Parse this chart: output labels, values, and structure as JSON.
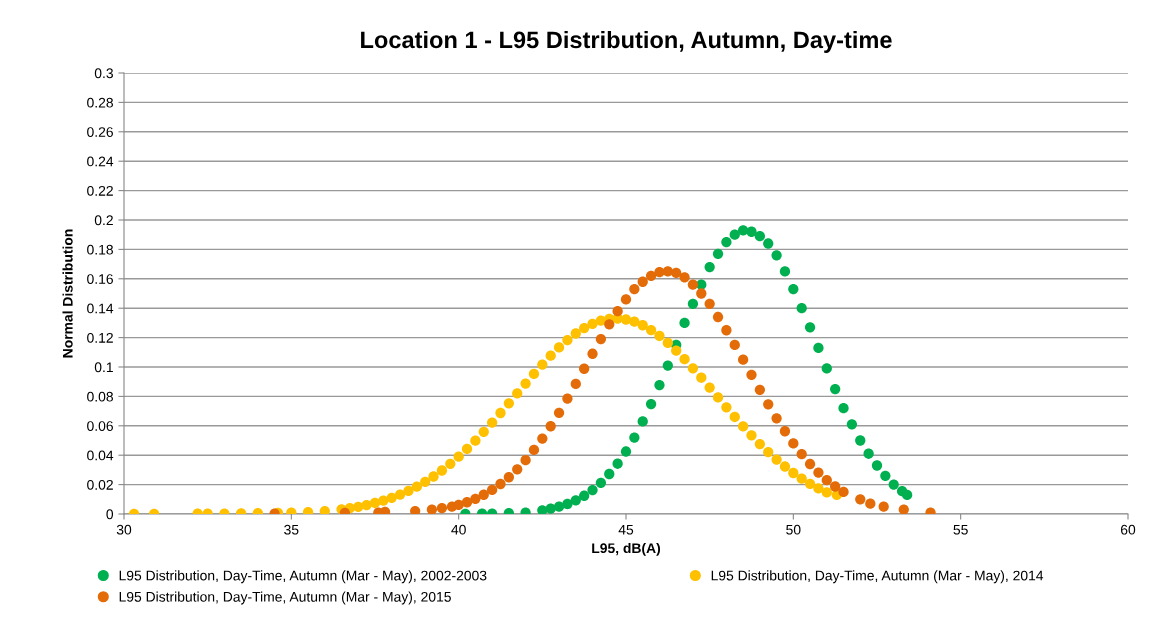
{
  "chart_data": {
    "type": "scatter",
    "title": "Location 1 - L95 Distribution, Autumn, Day-time",
    "xlabel": "L95, dB(A)",
    "ylabel": "Normal Distribution",
    "xlim": [
      30,
      60
    ],
    "xticks": [
      30,
      35,
      40,
      45,
      50,
      55,
      60
    ],
    "ylim": [
      0,
      0.3
    ],
    "yticks": [
      0,
      0.02,
      0.04,
      0.06,
      0.08,
      0.1,
      0.12,
      0.14,
      0.16,
      0.18,
      0.2,
      0.22,
      0.24,
      0.26,
      0.28,
      0.3
    ],
    "grid": "y",
    "legend": "bottom",
    "marker": "circle",
    "series": [
      {
        "name": "L95 Distribution, Day-Time, Autumn (Mar - May), 2002-2003",
        "color": "#00b050",
        "x": [
          40.2,
          40.7,
          41,
          41.5,
          42,
          42.5,
          42.75,
          43,
          43.25,
          43.5,
          43.75,
          44,
          44.25,
          44.5,
          44.75,
          45,
          45.25,
          45.5,
          45.75,
          46,
          46.25,
          46.5,
          46.75,
          47,
          47.25,
          47.5,
          47.75,
          48,
          48.25,
          48.5,
          48.75,
          49,
          49.25,
          49.5,
          49.75,
          50,
          50.25,
          50.5,
          50.75,
          51,
          51.25,
          51.5,
          51.75,
          52,
          52.25,
          52.5,
          52.75,
          53,
          53.25,
          53.4
        ],
        "values": [
          0.0001,
          0.0002,
          0.0002,
          0.0005,
          0.001,
          0.0025,
          0.0036,
          0.005,
          0.0068,
          0.0093,
          0.0124,
          0.0163,
          0.0212,
          0.0272,
          0.0342,
          0.0425,
          0.052,
          0.063,
          0.0748,
          0.0877,
          0.101,
          0.115,
          0.13,
          0.143,
          0.156,
          0.168,
          0.177,
          0.185,
          0.19,
          0.193,
          0.192,
          0.189,
          0.184,
          0.176,
          0.165,
          0.153,
          0.14,
          0.127,
          0.113,
          0.099,
          0.085,
          0.072,
          0.061,
          0.05,
          0.041,
          0.033,
          0.026,
          0.02,
          0.0155,
          0.013
        ]
      },
      {
        "name": "L95 Distribution, Day-Time, Autumn (Mar - May), 2014",
        "color": "#ffc000",
        "x": [
          30.3,
          30.9,
          32.2,
          32.5,
          33,
          33.5,
          34,
          34.6,
          35,
          35.5,
          36,
          36.5,
          36.75,
          37,
          37.25,
          37.5,
          37.75,
          38,
          38.25,
          38.5,
          38.75,
          39,
          39.25,
          39.5,
          39.75,
          40,
          40.25,
          40.5,
          40.75,
          41,
          41.25,
          41.5,
          41.75,
          42,
          42.25,
          42.5,
          42.75,
          43,
          43.25,
          43.5,
          43.75,
          44,
          44.25,
          44.5,
          44.75,
          45,
          45.25,
          45.5,
          45.75,
          46,
          46.25,
          46.5,
          46.75,
          47,
          47.25,
          47.5,
          47.75,
          48,
          48.25,
          48.5,
          48.75,
          49,
          49.25,
          49.5,
          49.75,
          50,
          50.25,
          50.5,
          50.75,
          51,
          51.3
        ],
        "values": [
          0.0001,
          0.0001,
          0.0002,
          0.0003,
          0.0003,
          0.0004,
          0.0006,
          0.0007,
          0.001,
          0.0013,
          0.002,
          0.0032,
          0.004,
          0.0049,
          0.0061,
          0.0075,
          0.0091,
          0.011,
          0.0132,
          0.0157,
          0.0186,
          0.0219,
          0.0255,
          0.0296,
          0.0341,
          0.039,
          0.0443,
          0.0499,
          0.0559,
          0.0622,
          0.0687,
          0.0753,
          0.082,
          0.0887,
          0.0953,
          0.1016,
          0.1077,
          0.1133,
          0.1183,
          0.1228,
          0.1265,
          0.1294,
          0.1315,
          0.1327,
          0.133,
          0.1323,
          0.1308,
          0.1284,
          0.1251,
          0.1211,
          0.1164,
          0.1111,
          0.1053,
          0.0991,
          0.0927,
          0.086,
          0.0793,
          0.0726,
          0.066,
          0.0596,
          0.0535,
          0.0476,
          0.0421,
          0.037,
          0.0323,
          0.0279,
          0.024,
          0.0205,
          0.0174,
          0.0147,
          0.013
        ]
      },
      {
        "name": "L95 Distribution, Day-Time, Autumn (Mar - May), 2015",
        "color": "#e36c09",
        "x": [
          34.5,
          36.6,
          37.6,
          37.8,
          38.7,
          39.2,
          39.5,
          39.8,
          40,
          40.25,
          40.5,
          40.75,
          41,
          41.25,
          41.5,
          41.75,
          42,
          42.25,
          42.5,
          42.75,
          43,
          43.25,
          43.5,
          43.75,
          44,
          44.25,
          44.5,
          44.75,
          45,
          45.25,
          45.5,
          45.75,
          46,
          46.25,
          46.5,
          46.75,
          47,
          47.25,
          47.5,
          47.75,
          48,
          48.25,
          48.5,
          48.75,
          49,
          49.25,
          49.5,
          49.75,
          50,
          50.25,
          50.5,
          50.75,
          51,
          51.25,
          51.5,
          52,
          52.3,
          52.7,
          53.3,
          54.1
        ],
        "values": [
          0.0003,
          0.0008,
          0.001,
          0.0015,
          0.002,
          0.003,
          0.004,
          0.005,
          0.0062,
          0.008,
          0.0103,
          0.0131,
          0.0164,
          0.0204,
          0.025,
          0.0304,
          0.0366,
          0.0436,
          0.0513,
          0.0597,
          0.0688,
          0.0785,
          0.0885,
          0.0988,
          0.109,
          0.119,
          0.129,
          0.138,
          0.146,
          0.153,
          0.158,
          0.162,
          0.1645,
          0.165,
          0.164,
          0.161,
          0.156,
          0.15,
          0.143,
          0.134,
          0.125,
          0.115,
          0.105,
          0.0947,
          0.0845,
          0.0746,
          0.0651,
          0.0563,
          0.048,
          0.0407,
          0.034,
          0.0282,
          0.023,
          0.0187,
          0.015,
          0.01,
          0.007,
          0.005,
          0.003,
          0.001
        ]
      }
    ]
  }
}
